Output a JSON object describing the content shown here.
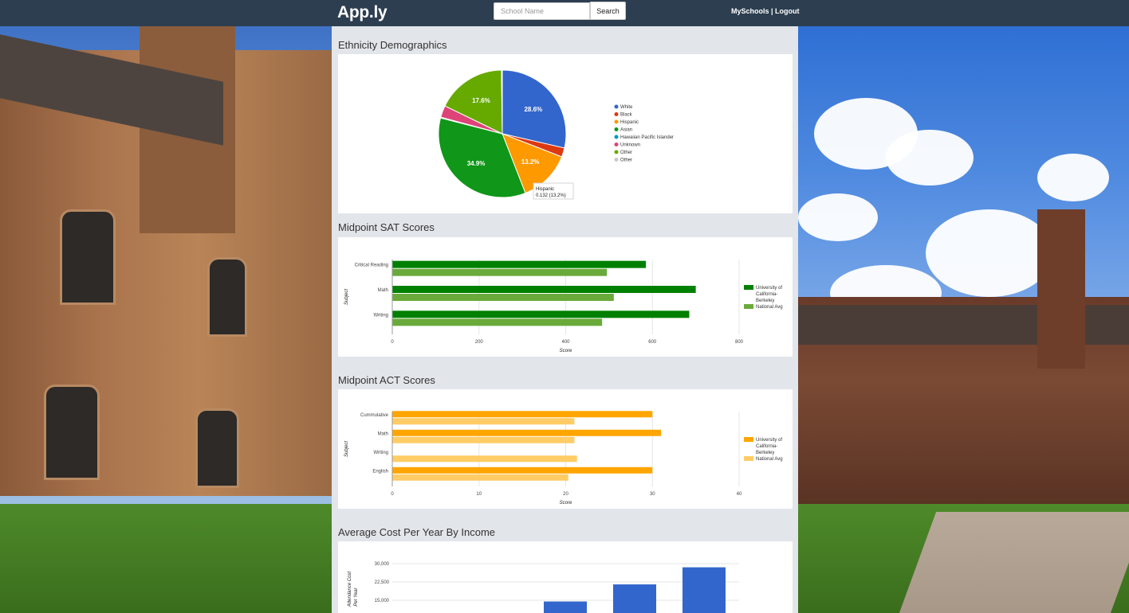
{
  "header": {
    "brand": "App.ly",
    "search_placeholder": "School Name",
    "search_button": "Search",
    "myschools_link": "MySchools",
    "separator": " | ",
    "logout_link": "Logout"
  },
  "sections": {
    "ethnicity_title": "Ethnicity Demographics",
    "sat_title": "Midpoint SAT Scores",
    "act_title": "Midpoint ACT Scores",
    "cost_title": "Average Cost Per Year By Income"
  },
  "colors": {
    "navbar": "#2c3e50",
    "primary_green": "#008000",
    "secondary_green": "#6aaa3a",
    "primary_orange": "#ffa500",
    "secondary_orange": "#ffcc66",
    "blue": "#3366cc"
  },
  "chart_data": [
    {
      "type": "pie",
      "title": "Ethnicity Demographics",
      "slices": [
        {
          "label": "White",
          "value": 28.6,
          "color": "#3366cc"
        },
        {
          "label": "Black",
          "value": 2.3,
          "color": "#dc3912"
        },
        {
          "label": "Hispanic",
          "value": 13.2,
          "color": "#ff9900"
        },
        {
          "label": "Asian",
          "value": 34.9,
          "color": "#109618"
        },
        {
          "label": "Hawaiian Pacific Islander",
          "value": 0.2,
          "color": "#0099c6"
        },
        {
          "label": "Unknown",
          "value": 3.0,
          "color": "#dd4477"
        },
        {
          "label": "Other",
          "value": 17.6,
          "color": "#66aa00"
        },
        {
          "label": "Other",
          "value": 0.2,
          "color": "#c9c9c9"
        }
      ],
      "tooltip": {
        "label": "Hispanic",
        "value": "0.132 (13.2%)"
      }
    },
    {
      "type": "bar",
      "orientation": "horizontal",
      "title": "Midpoint SAT Scores",
      "categories": [
        "Critical Reading",
        "Math",
        "Writing"
      ],
      "series": [
        {
          "name": "University of California-Berkeley",
          "values": [
            585,
            700,
            685
          ],
          "color": "#008000"
        },
        {
          "name": "National Avg",
          "values": [
            495,
            511,
            484
          ],
          "color": "#6aaa3a"
        }
      ],
      "xlabel": "Score",
      "ylabel": "Subject",
      "xlim": [
        0,
        800
      ],
      "xticks": [
        0,
        200,
        400,
        600,
        800
      ],
      "legend": "right"
    },
    {
      "type": "bar",
      "orientation": "horizontal",
      "title": "Midpoint ACT Scores",
      "categories": [
        "Cummulative",
        "Math",
        "Writing",
        "English"
      ],
      "series": [
        {
          "name": "University of California-Berkeley",
          "values": [
            30,
            31,
            null,
            30
          ],
          "color": "#ffa500"
        },
        {
          "name": "National Avg",
          "values": [
            21,
            21,
            21.3,
            20.3
          ],
          "color": "#ffcc66"
        }
      ],
      "xlabel": "Score",
      "ylabel": "Subject",
      "xlim": [
        0,
        40
      ],
      "xticks": [
        0,
        10,
        20,
        30,
        40
      ],
      "legend": "right"
    },
    {
      "type": "bar",
      "orientation": "vertical",
      "title": "Average Cost Per Year By Income",
      "ylabel": "Attendance Cost Per Year",
      "yticks": [
        "30,000",
        "22,500",
        "15,000"
      ],
      "ylim": [
        0,
        30000
      ],
      "values": [
        14500,
        21500,
        28500
      ],
      "color": "#3366cc"
    }
  ]
}
